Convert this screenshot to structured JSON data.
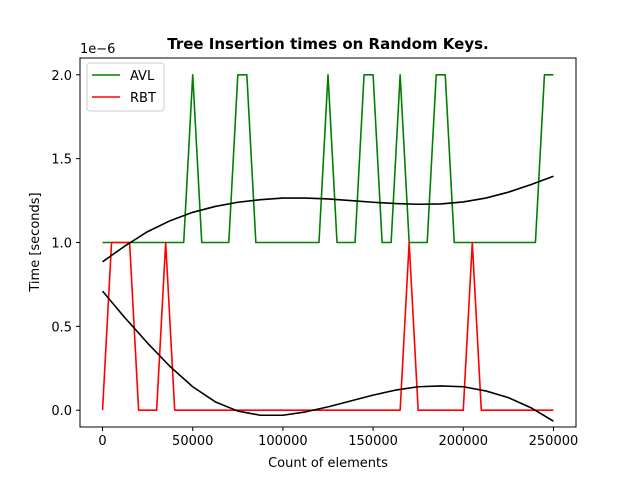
{
  "chart_data": {
    "type": "line",
    "title": "Tree Insertion times on Random Keys.",
    "xlabel": "Count of elements",
    "ylabel": "Time [seconds]",
    "y_offset_label": "1e−6",
    "xlim": [
      -12500,
      262500
    ],
    "ylim": [
      -0.1,
      2.1
    ],
    "x_ticks": [
      0,
      50000,
      100000,
      150000,
      200000,
      250000
    ],
    "x_tick_labels": [
      "0",
      "50000",
      "100000",
      "150000",
      "200000",
      "250000"
    ],
    "y_ticks": [
      0.0,
      0.5,
      1.0,
      1.5,
      2.0
    ],
    "y_tick_labels": [
      "0.0",
      "0.5",
      "1.0",
      "1.5",
      "2.0"
    ],
    "legend_position": "upper-left",
    "grid": false,
    "series": [
      {
        "name": "AVL",
        "color": "#008000",
        "x": [
          0,
          5000,
          10000,
          15000,
          20000,
          25000,
          30000,
          35000,
          40000,
          45000,
          50000,
          55000,
          60000,
          65000,
          70000,
          75000,
          80000,
          85000,
          90000,
          95000,
          100000,
          105000,
          110000,
          115000,
          120000,
          125000,
          130000,
          135000,
          140000,
          145000,
          150000,
          155000,
          160000,
          165000,
          170000,
          175000,
          180000,
          185000,
          190000,
          195000,
          200000,
          205000,
          210000,
          215000,
          220000,
          225000,
          230000,
          235000,
          240000,
          245000,
          250000
        ],
        "values": [
          1,
          1,
          1,
          1,
          1,
          1,
          1,
          1,
          1,
          1,
          2,
          1,
          1,
          1,
          1,
          2,
          2,
          1,
          1,
          1,
          1,
          1,
          1,
          1,
          1,
          2,
          1,
          1,
          1,
          2,
          2,
          1,
          1,
          2,
          1,
          1,
          1,
          2,
          2,
          1,
          1,
          1,
          1,
          1,
          1,
          1,
          1,
          1,
          1,
          2,
          2
        ]
      },
      {
        "name": "RBT",
        "color": "#ff0000",
        "x": [
          0,
          5000,
          10000,
          15000,
          20000,
          25000,
          30000,
          35000,
          40000,
          45000,
          50000,
          55000,
          60000,
          65000,
          70000,
          75000,
          80000,
          85000,
          90000,
          95000,
          100000,
          105000,
          110000,
          115000,
          120000,
          125000,
          130000,
          135000,
          140000,
          145000,
          150000,
          155000,
          160000,
          165000,
          170000,
          175000,
          180000,
          185000,
          190000,
          195000,
          200000,
          205000,
          210000,
          215000,
          220000,
          225000,
          230000,
          235000,
          240000,
          245000,
          250000
        ],
        "values": [
          0,
          1,
          1,
          1,
          0,
          0,
          0,
          1,
          0,
          0,
          0,
          0,
          0,
          0,
          0,
          0,
          0,
          0,
          0,
          0,
          0,
          0,
          0,
          0,
          0,
          0,
          0,
          0,
          0,
          0,
          0,
          0,
          0,
          0,
          1,
          0,
          0,
          0,
          0,
          0,
          0,
          1,
          0,
          0,
          0,
          0,
          0,
          0,
          0,
          0,
          0
        ]
      },
      {
        "color": "#000000",
        "x": [
          0,
          12500,
          25000,
          37500,
          50000,
          62500,
          75000,
          87500,
          100000,
          112500,
          125000,
          137500,
          150000,
          162500,
          175000,
          187500,
          200000,
          212500,
          225000,
          237500,
          250000
        ],
        "values": [
          0.885,
          0.98,
          1.065,
          1.13,
          1.18,
          1.215,
          1.24,
          1.255,
          1.265,
          1.265,
          1.26,
          1.25,
          1.24,
          1.232,
          1.228,
          1.23,
          1.242,
          1.265,
          1.3,
          1.345,
          1.395
        ]
      },
      {
        "color": "#000000",
        "x": [
          0,
          12500,
          25000,
          37500,
          50000,
          62500,
          75000,
          87500,
          100000,
          112500,
          125000,
          137500,
          150000,
          162500,
          175000,
          187500,
          200000,
          212500,
          225000,
          237500,
          250000
        ],
        "values": [
          0.71,
          0.55,
          0.4,
          0.26,
          0.14,
          0.05,
          -0.005,
          -0.03,
          -0.03,
          -0.01,
          0.02,
          0.055,
          0.09,
          0.12,
          0.14,
          0.145,
          0.14,
          0.115,
          0.075,
          0.015,
          -0.065
        ]
      }
    ]
  }
}
